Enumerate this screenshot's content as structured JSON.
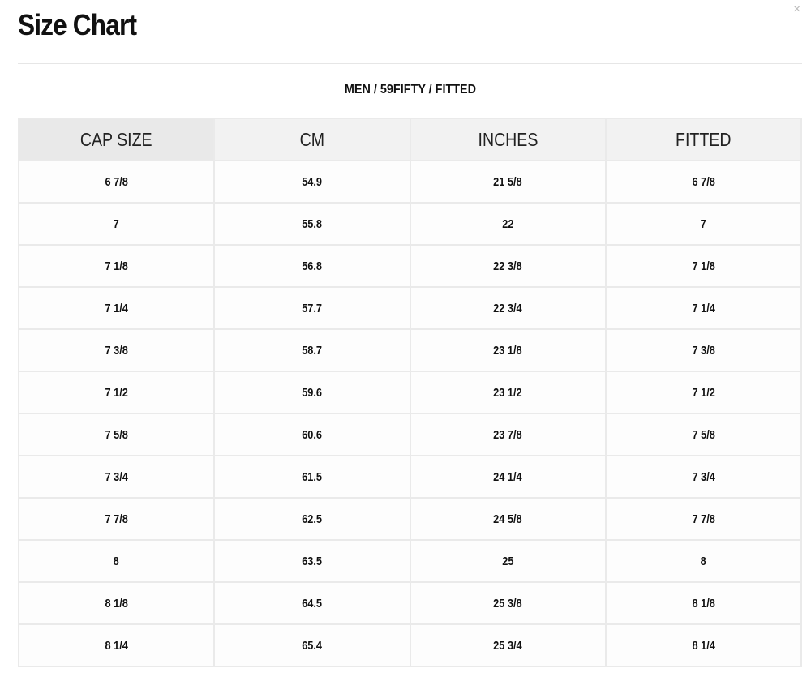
{
  "title": "Size Chart",
  "close_label": "×",
  "subtitle": "MEN / 59FIFTY / FITTED",
  "table": {
    "headers": [
      "CAP SIZE",
      "CM",
      "INCHES",
      "FITTED"
    ],
    "rows": [
      [
        "6 7/8",
        "54.9",
        "21 5/8",
        "6 7/8"
      ],
      [
        "7",
        "55.8",
        "22",
        "7"
      ],
      [
        "7 1/8",
        "56.8",
        "22 3/8",
        "7 1/8"
      ],
      [
        "7 1/4",
        "57.7",
        "22 3/4",
        "7 1/4"
      ],
      [
        "7 3/8",
        "58.7",
        "23 1/8",
        "7 3/8"
      ],
      [
        "7 1/2",
        "59.6",
        "23 1/2",
        "7 1/2"
      ],
      [
        "7 5/8",
        "60.6",
        "23 7/8",
        "7 5/8"
      ],
      [
        "7 3/4",
        "61.5",
        "24 1/4",
        "7 3/4"
      ],
      [
        "7 7/8",
        "62.5",
        "24 5/8",
        "7 7/8"
      ],
      [
        "8",
        "63.5",
        "25",
        "8"
      ],
      [
        "8 1/8",
        "64.5",
        "25 3/8",
        "8 1/8"
      ],
      [
        "8 1/4",
        "65.4",
        "25 3/4",
        "8 1/4"
      ]
    ]
  }
}
